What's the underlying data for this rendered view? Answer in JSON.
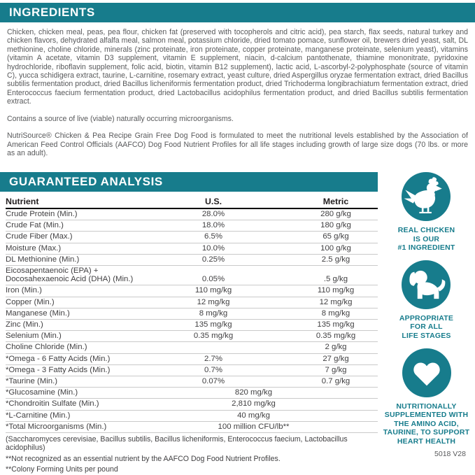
{
  "colors": {
    "accent": "#177C8C"
  },
  "ingredients": {
    "header": "INGREDIENTS",
    "body": "Chicken, chicken meal, peas, pea flour, chicken fat (preserved with tocopherols and citric acid), pea starch, flax seeds, natural turkey and chicken flavors, dehydrated alfalfa meal, salmon meal, potassium chloride, dried tomato pomace, sunflower oil, brewers dried yeast, salt, DL methionine, choline chloride, minerals (zinc proteinate, iron proteinate, copper proteinate, manganese proteinate, selenium yeast), vitamins (vitamin A acetate, vitamin D3 supplement, vitamin E supplement, niacin, d-calcium pantothenate, thiamine mononitrate, pyridoxine hydrochloride, riboflavin supplement, folic acid, biotin, vitamin B12 supplement), lactic acid, L-ascorbyl-2-polyphosphate (source of vitamin C), yucca schidigera extract, taurine, L-carnitine, rosemary extract, yeast culture, dried Aspergillus oryzae fermentation extract, dried Bacillus subtilis fermentation product, dried Bacillus licheniformis fermentation product, dried Trichoderma longibrachiatum fermentation extract, dried Enterococcus faecium fermentation product, dried Lactobacillus acidophilus fermentation product, and dried Bacillus subtilis fermentation extract.",
    "microorganisms_note": "Contains a source of live (viable) naturally occurring microorganisms.",
    "aafco_statement": "NutriSource® Chicken & Pea Recipe Grain Free Dog Food is formulated to meet the nutritional levels established by the Association of American Feed Control Officials (AAFCO) Dog Food Nutrient Profiles for all life stages including growth of large size dogs (70 lbs. or more as an adult)."
  },
  "analysis": {
    "header": "GUARANTEED ANALYSIS",
    "columns": [
      "Nutrient",
      "U.S.",
      "Metric"
    ],
    "rows": [
      {
        "n": "Crude Protein (Min.)",
        "us": "28.0%",
        "m": "280 g/kg"
      },
      {
        "n": "Crude Fat (Min.)",
        "us": "18.0%",
        "m": "180 g/kg"
      },
      {
        "n": "Crude Fiber (Max.)",
        "us": "6.5%",
        "m": "65 g/kg"
      },
      {
        "n": "Moisture (Max.)",
        "us": "10.0%",
        "m": "100 g/kg"
      },
      {
        "n": "DL Methionine (Min.)",
        "us": "0.25%",
        "m": "2.5 g/kg"
      },
      {
        "n": "Eicosapentaenoic (EPA) +\nDocosahexaenoic Acid (DHA) (Min.)",
        "us": "0.05%",
        "m": ".5 g/kg"
      },
      {
        "n": "Iron (Min.)",
        "us": "110 mg/kg",
        "m": "110 mg/kg"
      },
      {
        "n": "Copper (Min.)",
        "us": "12 mg/kg",
        "m": "12 mg/kg"
      },
      {
        "n": "Manganese (Min.)",
        "us": "8 mg/kg",
        "m": "8 mg/kg"
      },
      {
        "n": "Zinc (Min.)",
        "us": "135 mg/kg",
        "m": "135 mg/kg"
      },
      {
        "n": "Selenium (Min.)",
        "us": "0.35 mg/kg",
        "m": "0.35 mg/kg"
      },
      {
        "n": "Choline Chloride (Min.)",
        "us": "",
        "m": "2 g/kg"
      },
      {
        "n": "*Omega - 6 Fatty Acids (Min.)",
        "us": "2.7%",
        "m": "27 g/kg"
      },
      {
        "n": "*Omega - 3 Fatty Acids (Min.)",
        "us": "0.7%",
        "m": "7 g/kg"
      },
      {
        "n": "*Taurine (Min.)",
        "us": "0.07%",
        "m": "0.7 g/kg"
      },
      {
        "n": "*Glucosamine (Min.)",
        "span": "820 mg/kg"
      },
      {
        "n": "*Chondroitin Sulfate (Min.)",
        "span": "2,810 mg/kg"
      },
      {
        "n": "*L-Carnitine (Min.)",
        "span": "40 mg/kg"
      },
      {
        "n": "*Total Microorganisms (Min.)",
        "span": "100 million CFU/lb**"
      }
    ],
    "footnotes": [
      "(Saccharomyces cerevisiae, Bacillus subtilis, Bacillus licheniformis, Enterococcus faecium, Lactobacillus acidophilus)",
      "**Not recognized as an essential nutrient by the AAFCO Dog Food Nutrient Profiles.",
      "**Colony Forming Units per pound"
    ]
  },
  "badges": [
    {
      "icon": "chicken-icon",
      "label": "REAL CHICKEN\nIS OUR\n#1 INGREDIENT"
    },
    {
      "icon": "dog-icon",
      "label": "APPROPRIATE\nFOR ALL\nLIFE STAGES"
    },
    {
      "icon": "heart-icon",
      "label": "NUTRITIONALLY\nSUPPLEMENTED WITH\nTHE AMINO ACID,\nTAURINE, TO SUPPORT\nHEART HEALTH"
    }
  ],
  "footer": {
    "code": "5018 V28"
  }
}
